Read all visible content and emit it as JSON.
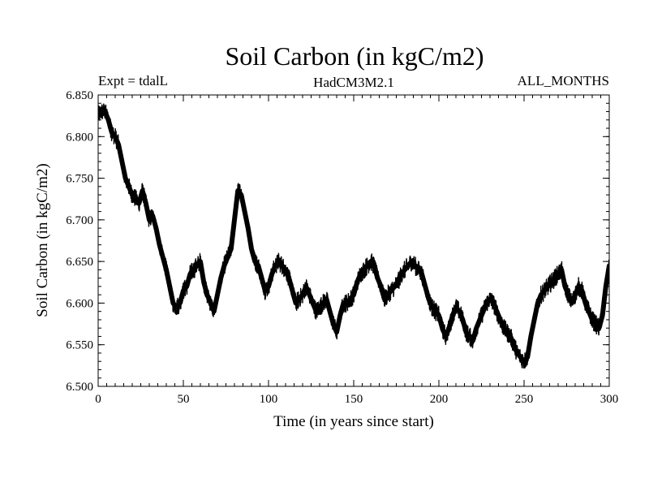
{
  "chart_data": {
    "type": "line",
    "title": "Soil Carbon (in kgC/m2)",
    "subtitle_left": "Expt = tdalL",
    "subtitle_center": "HadCM3M2.1",
    "subtitle_right": "ALL_MONTHS",
    "xlabel": "Time (in years since start)",
    "ylabel": "Soil Carbon (in kgC/m2)",
    "xlim": [
      0,
      300
    ],
    "ylim": [
      6.5,
      6.85
    ],
    "xticks": [
      0,
      50,
      100,
      150,
      200,
      250,
      300
    ],
    "xtick_labels": [
      "0",
      "50",
      "100",
      "150",
      "200",
      "250",
      "300"
    ],
    "yticks": [
      6.5,
      6.55,
      6.6,
      6.65,
      6.7,
      6.75,
      6.8,
      6.85
    ],
    "ytick_labels": [
      "6.500",
      "6.550",
      "6.600",
      "6.650",
      "6.700",
      "6.750",
      "6.800",
      "6.850"
    ],
    "grid": false,
    "line_color": "#000000",
    "series": [
      {
        "name": "Soil Carbon",
        "x": [
          0,
          2,
          4,
          6,
          8,
          10,
          12,
          14,
          16,
          18,
          20,
          22,
          24,
          26,
          28,
          30,
          32,
          34,
          36,
          38,
          40,
          42,
          44,
          46,
          48,
          50,
          52,
          54,
          56,
          58,
          60,
          62,
          64,
          66,
          68,
          70,
          72,
          74,
          76,
          78,
          80,
          82,
          84,
          86,
          88,
          90,
          92,
          94,
          96,
          98,
          100,
          102,
          104,
          106,
          108,
          110,
          112,
          114,
          116,
          118,
          120,
          122,
          124,
          126,
          128,
          130,
          132,
          134,
          136,
          138,
          140,
          142,
          144,
          146,
          148,
          150,
          152,
          154,
          156,
          158,
          160,
          162,
          164,
          166,
          168,
          170,
          172,
          174,
          176,
          178,
          180,
          182,
          184,
          186,
          188,
          190,
          192,
          194,
          196,
          198,
          200,
          202,
          204,
          206,
          208,
          210,
          212,
          214,
          216,
          218,
          220,
          222,
          224,
          226,
          228,
          230,
          232,
          234,
          236,
          238,
          240,
          242,
          244,
          246,
          248,
          250,
          252,
          254,
          256,
          258,
          260,
          262,
          264,
          266,
          268,
          270,
          272,
          274,
          276,
          278,
          280,
          282,
          284,
          286,
          288,
          290,
          292,
          294,
          296,
          298,
          300
        ],
        "y": [
          6.825,
          6.83,
          6.83,
          6.82,
          6.805,
          6.8,
          6.79,
          6.77,
          6.75,
          6.74,
          6.73,
          6.725,
          6.72,
          6.735,
          6.72,
          6.7,
          6.705,
          6.69,
          6.67,
          6.655,
          6.64,
          6.62,
          6.6,
          6.595,
          6.6,
          6.615,
          6.62,
          6.635,
          6.64,
          6.645,
          6.65,
          6.625,
          6.61,
          6.6,
          6.59,
          6.61,
          6.63,
          6.645,
          6.655,
          6.665,
          6.7,
          6.735,
          6.73,
          6.71,
          6.69,
          6.665,
          6.65,
          6.645,
          6.63,
          6.615,
          6.62,
          6.635,
          6.645,
          6.65,
          6.645,
          6.64,
          6.63,
          6.615,
          6.6,
          6.605,
          6.61,
          6.62,
          6.61,
          6.6,
          6.59,
          6.595,
          6.6,
          6.605,
          6.59,
          6.575,
          6.565,
          6.585,
          6.6,
          6.6,
          6.605,
          6.61,
          6.625,
          6.635,
          6.64,
          6.645,
          6.65,
          6.645,
          6.63,
          6.62,
          6.605,
          6.61,
          6.615,
          6.62,
          6.625,
          6.635,
          6.64,
          6.645,
          6.65,
          6.645,
          6.64,
          6.635,
          6.62,
          6.605,
          6.595,
          6.59,
          6.585,
          6.57,
          6.56,
          6.57,
          6.585,
          6.595,
          6.59,
          6.58,
          6.565,
          6.56,
          6.555,
          6.57,
          6.58,
          6.59,
          6.6,
          6.605,
          6.6,
          6.59,
          6.58,
          6.57,
          6.565,
          6.56,
          6.55,
          6.54,
          6.535,
          6.53,
          6.535,
          6.56,
          6.58,
          6.6,
          6.61,
          6.615,
          6.62,
          6.625,
          6.63,
          6.635,
          6.64,
          6.62,
          6.61,
          6.6,
          6.61,
          6.62,
          6.615,
          6.6,
          6.59,
          6.58,
          6.575,
          6.57,
          6.585,
          6.62,
          6.645
        ]
      }
    ]
  }
}
